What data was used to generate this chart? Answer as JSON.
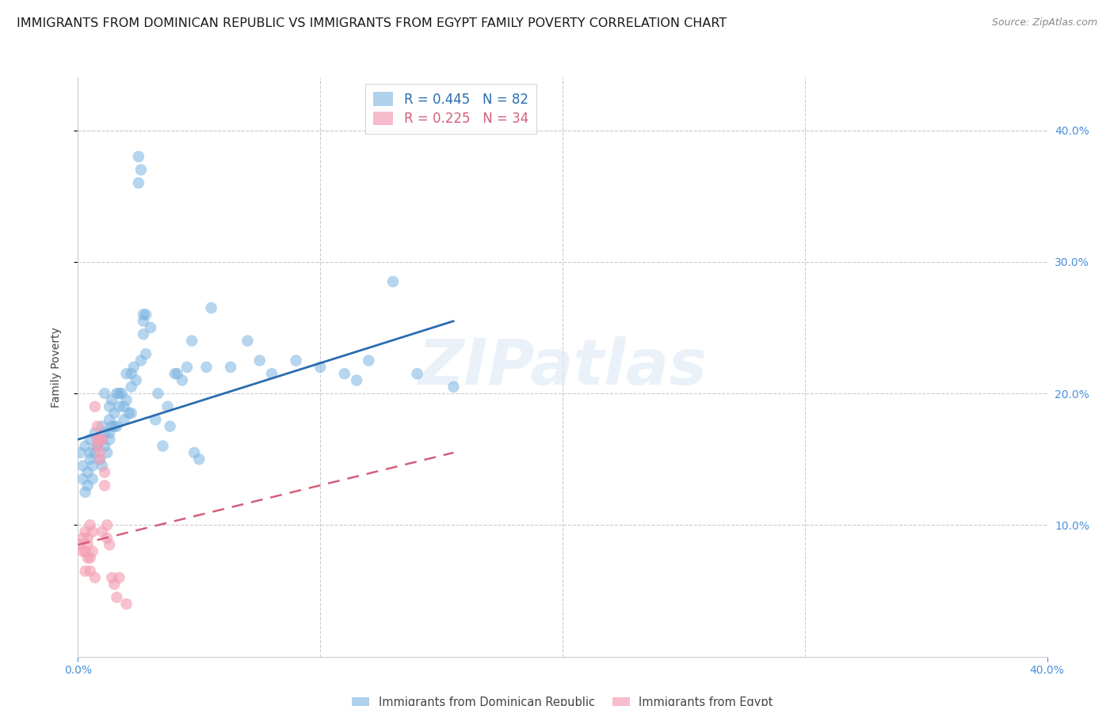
{
  "title": "IMMIGRANTS FROM DOMINICAN REPUBLIC VS IMMIGRANTS FROM EGYPT FAMILY POVERTY CORRELATION CHART",
  "source": "Source: ZipAtlas.com",
  "ylabel": "Family Poverty",
  "xlim": [
    0.0,
    0.4
  ],
  "ylim": [
    0.0,
    0.44
  ],
  "blue_color": "#7ab3e0",
  "pink_color": "#f4a0b5",
  "blue_line_color": "#2b6cb0",
  "pink_line_color": "#d45f7a",
  "watermark": "ZIPatlas",
  "blue_scatter": [
    [
      0.001,
      0.155
    ],
    [
      0.002,
      0.145
    ],
    [
      0.002,
      0.135
    ],
    [
      0.003,
      0.16
    ],
    [
      0.003,
      0.125
    ],
    [
      0.004,
      0.14
    ],
    [
      0.004,
      0.13
    ],
    [
      0.005,
      0.155
    ],
    [
      0.005,
      0.165
    ],
    [
      0.005,
      0.15
    ],
    [
      0.006,
      0.135
    ],
    [
      0.006,
      0.145
    ],
    [
      0.007,
      0.17
    ],
    [
      0.007,
      0.155
    ],
    [
      0.008,
      0.16
    ],
    [
      0.008,
      0.16
    ],
    [
      0.009,
      0.15
    ],
    [
      0.009,
      0.165
    ],
    [
      0.01,
      0.175
    ],
    [
      0.01,
      0.145
    ],
    [
      0.01,
      0.165
    ],
    [
      0.011,
      0.2
    ],
    [
      0.011,
      0.17
    ],
    [
      0.011,
      0.16
    ],
    [
      0.012,
      0.155
    ],
    [
      0.013,
      0.18
    ],
    [
      0.013,
      0.17
    ],
    [
      0.013,
      0.19
    ],
    [
      0.013,
      0.165
    ],
    [
      0.014,
      0.175
    ],
    [
      0.014,
      0.195
    ],
    [
      0.015,
      0.175
    ],
    [
      0.015,
      0.185
    ],
    [
      0.016,
      0.2
    ],
    [
      0.016,
      0.175
    ],
    [
      0.017,
      0.2
    ],
    [
      0.017,
      0.19
    ],
    [
      0.018,
      0.2
    ],
    [
      0.019,
      0.18
    ],
    [
      0.019,
      0.19
    ],
    [
      0.02,
      0.215
    ],
    [
      0.02,
      0.195
    ],
    [
      0.021,
      0.185
    ],
    [
      0.022,
      0.215
    ],
    [
      0.022,
      0.205
    ],
    [
      0.022,
      0.185
    ],
    [
      0.023,
      0.22
    ],
    [
      0.024,
      0.21
    ],
    [
      0.025,
      0.38
    ],
    [
      0.025,
      0.36
    ],
    [
      0.026,
      0.37
    ],
    [
      0.026,
      0.225
    ],
    [
      0.027,
      0.255
    ],
    [
      0.027,
      0.26
    ],
    [
      0.027,
      0.245
    ],
    [
      0.028,
      0.26
    ],
    [
      0.028,
      0.23
    ],
    [
      0.03,
      0.25
    ],
    [
      0.032,
      0.18
    ],
    [
      0.033,
      0.2
    ],
    [
      0.035,
      0.16
    ],
    [
      0.037,
      0.19
    ],
    [
      0.038,
      0.175
    ],
    [
      0.04,
      0.215
    ],
    [
      0.041,
      0.215
    ],
    [
      0.043,
      0.21
    ],
    [
      0.045,
      0.22
    ],
    [
      0.047,
      0.24
    ],
    [
      0.048,
      0.155
    ],
    [
      0.05,
      0.15
    ],
    [
      0.053,
      0.22
    ],
    [
      0.055,
      0.265
    ],
    [
      0.063,
      0.22
    ],
    [
      0.07,
      0.24
    ],
    [
      0.075,
      0.225
    ],
    [
      0.08,
      0.215
    ],
    [
      0.09,
      0.225
    ],
    [
      0.1,
      0.22
    ],
    [
      0.11,
      0.215
    ],
    [
      0.115,
      0.21
    ],
    [
      0.12,
      0.225
    ],
    [
      0.13,
      0.285
    ],
    [
      0.14,
      0.215
    ],
    [
      0.155,
      0.205
    ]
  ],
  "pink_scatter": [
    [
      0.001,
      0.085
    ],
    [
      0.002,
      0.08
    ],
    [
      0.002,
      0.09
    ],
    [
      0.003,
      0.065
    ],
    [
      0.003,
      0.08
    ],
    [
      0.003,
      0.095
    ],
    [
      0.004,
      0.075
    ],
    [
      0.004,
      0.085
    ],
    [
      0.004,
      0.09
    ],
    [
      0.005,
      0.1
    ],
    [
      0.005,
      0.075
    ],
    [
      0.005,
      0.065
    ],
    [
      0.006,
      0.08
    ],
    [
      0.006,
      0.095
    ],
    [
      0.007,
      0.06
    ],
    [
      0.007,
      0.19
    ],
    [
      0.008,
      0.165
    ],
    [
      0.008,
      0.16
    ],
    [
      0.008,
      0.175
    ],
    [
      0.009,
      0.155
    ],
    [
      0.009,
      0.165
    ],
    [
      0.009,
      0.15
    ],
    [
      0.01,
      0.095
    ],
    [
      0.01,
      0.165
    ],
    [
      0.011,
      0.14
    ],
    [
      0.011,
      0.13
    ],
    [
      0.012,
      0.09
    ],
    [
      0.012,
      0.1
    ],
    [
      0.013,
      0.085
    ],
    [
      0.014,
      0.06
    ],
    [
      0.015,
      0.055
    ],
    [
      0.016,
      0.045
    ],
    [
      0.017,
      0.06
    ],
    [
      0.02,
      0.04
    ]
  ],
  "blue_trendline_x": [
    0.0,
    0.155
  ],
  "blue_trendline_y": [
    0.165,
    0.255
  ],
  "pink_trendline_x": [
    0.0,
    0.155
  ],
  "pink_trendline_y": [
    0.085,
    0.155
  ],
  "background_color": "#ffffff",
  "grid_color": "#cccccc",
  "axis_color": "#4a90d9",
  "title_fontsize": 11.5,
  "label_fontsize": 10,
  "tick_fontsize": 10
}
